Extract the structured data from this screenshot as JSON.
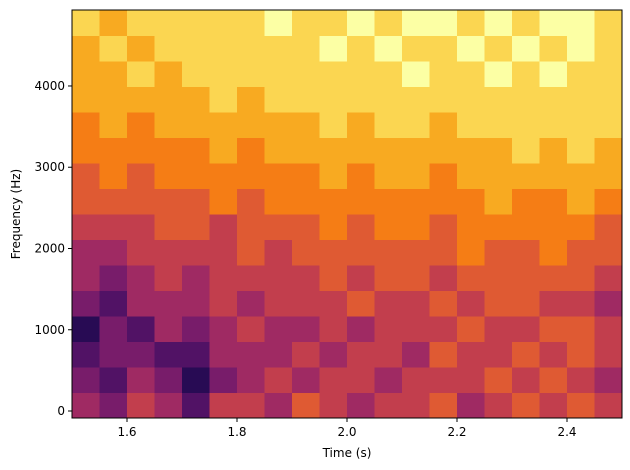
{
  "chart_data": {
    "type": "heatmap",
    "xlabel": "Time (s)",
    "ylabel": "Frequency (Hz)",
    "colormap": "inferno_r",
    "xlim": [
      1.5,
      2.5
    ],
    "ylim": [
      -86,
      4935
    ],
    "xticks": [
      {
        "value": 1.6,
        "label": "1.6"
      },
      {
        "value": 1.8,
        "label": "1.8"
      },
      {
        "value": 2.0,
        "label": "2.0"
      },
      {
        "value": 2.2,
        "label": "2.2"
      },
      {
        "value": 2.4,
        "label": "2.4"
      }
    ],
    "yticks": [
      0,
      1000,
      2000,
      3000,
      4000
    ],
    "z": [
      [
        0.6,
        0.7,
        0.5,
        0.6,
        0.8,
        0.5,
        0.5,
        0.6,
        0.4,
        0.5,
        0.6,
        0.5,
        0.5,
        0.4,
        0.6,
        0.5,
        0.4,
        0.5,
        0.4,
        0.5
      ],
      [
        0.7,
        0.8,
        0.6,
        0.7,
        0.9,
        0.7,
        0.6,
        0.5,
        0.6,
        0.5,
        0.5,
        0.6,
        0.5,
        0.5,
        0.5,
        0.4,
        0.5,
        0.4,
        0.5,
        0.6
      ],
      [
        0.8,
        0.7,
        0.7,
        0.8,
        0.8,
        0.6,
        0.6,
        0.6,
        0.5,
        0.6,
        0.5,
        0.5,
        0.6,
        0.4,
        0.5,
        0.5,
        0.4,
        0.5,
        0.4,
        0.5
      ],
      [
        0.9,
        0.7,
        0.8,
        0.6,
        0.7,
        0.6,
        0.5,
        0.6,
        0.6,
        0.5,
        0.6,
        0.5,
        0.5,
        0.5,
        0.4,
        0.5,
        0.5,
        0.4,
        0.4,
        0.5
      ],
      [
        0.7,
        0.8,
        0.6,
        0.6,
        0.6,
        0.5,
        0.6,
        0.5,
        0.5,
        0.5,
        0.4,
        0.5,
        0.5,
        0.4,
        0.5,
        0.4,
        0.4,
        0.5,
        0.5,
        0.6
      ],
      [
        0.6,
        0.7,
        0.6,
        0.5,
        0.6,
        0.5,
        0.5,
        0.5,
        0.5,
        0.4,
        0.5,
        0.4,
        0.4,
        0.5,
        0.4,
        0.4,
        0.4,
        0.4,
        0.4,
        0.5
      ],
      [
        0.6,
        0.6,
        0.5,
        0.5,
        0.5,
        0.5,
        0.4,
        0.5,
        0.4,
        0.4,
        0.4,
        0.4,
        0.4,
        0.4,
        0.3,
        0.4,
        0.4,
        0.3,
        0.4,
        0.4
      ],
      [
        0.5,
        0.5,
        0.5,
        0.4,
        0.4,
        0.5,
        0.4,
        0.4,
        0.4,
        0.3,
        0.4,
        0.3,
        0.3,
        0.4,
        0.3,
        0.3,
        0.3,
        0.3,
        0.3,
        0.4
      ],
      [
        0.4,
        0.4,
        0.4,
        0.4,
        0.4,
        0.3,
        0.4,
        0.3,
        0.3,
        0.3,
        0.3,
        0.3,
        0.3,
        0.3,
        0.3,
        0.2,
        0.3,
        0.3,
        0.2,
        0.3
      ],
      [
        0.4,
        0.3,
        0.4,
        0.3,
        0.3,
        0.3,
        0.3,
        0.3,
        0.3,
        0.2,
        0.3,
        0.2,
        0.2,
        0.3,
        0.2,
        0.2,
        0.2,
        0.2,
        0.2,
        0.2
      ],
      [
        0.3,
        0.3,
        0.3,
        0.3,
        0.3,
        0.2,
        0.3,
        0.2,
        0.2,
        0.2,
        0.2,
        0.2,
        0.2,
        0.2,
        0.2,
        0.2,
        0.1,
        0.2,
        0.1,
        0.2
      ],
      [
        0.3,
        0.2,
        0.3,
        0.2,
        0.2,
        0.2,
        0.2,
        0.2,
        0.2,
        0.1,
        0.2,
        0.1,
        0.1,
        0.2,
        0.1,
        0.1,
        0.1,
        0.1,
        0.1,
        0.1
      ],
      [
        0.2,
        0.2,
        0.2,
        0.2,
        0.2,
        0.1,
        0.2,
        0.1,
        0.1,
        0.1,
        0.1,
        0.1,
        0.1,
        0.1,
        0.1,
        0.1,
        0.1,
        0.1,
        0.1,
        0.1
      ],
      [
        0.2,
        0.2,
        0.1,
        0.2,
        0.1,
        0.1,
        0.1,
        0.1,
        0.1,
        0.1,
        0.1,
        0.1,
        0.0,
        0.1,
        0.1,
        0.0,
        0.1,
        0.0,
        0.1,
        0.1
      ],
      [
        0.2,
        0.1,
        0.2,
        0.1,
        0.1,
        0.1,
        0.1,
        0.1,
        0.1,
        0.0,
        0.1,
        0.0,
        0.1,
        0.1,
        0.0,
        0.1,
        0.0,
        0.1,
        0.0,
        0.1
      ],
      [
        0.1,
        0.2,
        0.1,
        0.1,
        0.1,
        0.1,
        0.1,
        0.0,
        0.1,
        0.1,
        0.0,
        0.1,
        0.0,
        0.0,
        0.1,
        0.0,
        0.1,
        0.0,
        0.0,
        0.1
      ]
    ]
  }
}
